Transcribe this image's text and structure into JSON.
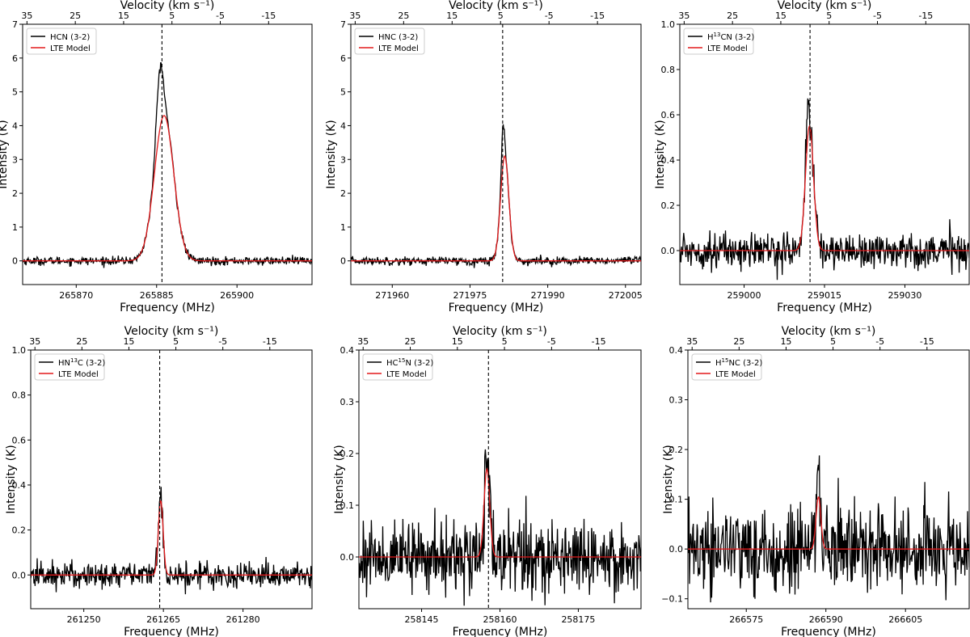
{
  "figure": {
    "chart_colors": {
      "observed": "#000000",
      "model": "#e31a1c",
      "marker": "#000000"
    }
  },
  "chart_data": [
    {
      "type": "line",
      "title": "",
      "xlabel": "Frequency (MHz)",
      "ylabel": "Intensity (K)",
      "top_xlabel": "Velocity (km s⁻¹)",
      "xlim": [
        265860,
        265914
      ],
      "ylim": [
        -0.7,
        7.0
      ],
      "x_ticks": [
        265870,
        265885,
        265900
      ],
      "y_ticks": [
        0,
        1,
        2,
        3,
        4,
        5,
        6,
        7
      ],
      "y_tick_labels": [
        "0",
        "1",
        "2",
        "3",
        "4",
        "5",
        "6",
        "7"
      ],
      "top_ticks": [
        35,
        25,
        15,
        5,
        -5,
        -15
      ],
      "legend": {
        "observed": "HCN (3-2)",
        "model": "LTE Model",
        "position": "top-left"
      },
      "line": {
        "center": 265886.4,
        "sigma": 1.8,
        "model_peak": 4.3,
        "obs_peak": 6.1,
        "noise": 0.06,
        "vline": 265886.0
      }
    },
    {
      "type": "line",
      "title": "",
      "xlabel": "Frequency (MHz)",
      "ylabel": "Intensity (K)",
      "top_xlabel": "Velocity (km s⁻¹)",
      "xlim": [
        271952,
        272008
      ],
      "ylim": [
        -0.7,
        7.0
      ],
      "x_ticks": [
        271960,
        271975,
        271990,
        272005
      ],
      "y_ticks": [
        0,
        1,
        2,
        3,
        4,
        5,
        6,
        7
      ],
      "y_tick_labels": [
        "0",
        "1",
        "2",
        "3",
        "4",
        "5",
        "6",
        "7"
      ],
      "top_ticks": [
        35,
        25,
        15,
        5,
        -5,
        -15
      ],
      "legend": {
        "observed": "HNC (3-2)",
        "model": "LTE Model",
        "position": "top-left"
      },
      "line": {
        "center": 271981.7,
        "sigma": 0.8,
        "model_peak": 3.1,
        "obs_peak": 4.3,
        "noise": 0.06,
        "vline": 271981.3
      }
    },
    {
      "type": "line",
      "title": "",
      "xlabel": "Frequency (MHz)",
      "ylabel": "Intensity (K)",
      "top_xlabel": "Velocity (km s⁻¹)",
      "xlim": [
        258988,
        259042
      ],
      "ylim": [
        -0.15,
        1.0
      ],
      "x_ticks": [
        259000,
        259015,
        259030
      ],
      "y_ticks": [
        0.0,
        0.2,
        0.4,
        0.6,
        0.8,
        1.0
      ],
      "y_tick_labels": [
        "0.0",
        "0.2",
        "0.4",
        "0.6",
        "0.8",
        "1.0"
      ],
      "top_ticks": [
        35,
        25,
        15,
        5,
        -5,
        -15
      ],
      "legend": {
        "observed_pre": "H",
        "observed_sup": "13",
        "observed_post": "CN (3-2)",
        "model": "LTE Model",
        "position": "top-left"
      },
      "line": {
        "center": 259012.2,
        "sigma": 0.75,
        "model_peak": 0.55,
        "obs_peak": 0.7,
        "noise": 0.04,
        "vline": 259012.3
      }
    },
    {
      "type": "line",
      "title": "",
      "xlabel": "Frequency (MHz)",
      "ylabel": "Intensity (K)",
      "top_xlabel": "Velocity (km s⁻¹)",
      "xlim": [
        261240,
        261293
      ],
      "ylim": [
        -0.15,
        1.0
      ],
      "x_ticks": [
        261250,
        261265,
        261280
      ],
      "y_ticks": [
        0.0,
        0.2,
        0.4,
        0.6,
        0.8,
        1.0
      ],
      "y_tick_labels": [
        "0.0",
        "0.2",
        "0.4",
        "0.6",
        "0.8",
        "1.0"
      ],
      "top_ticks": [
        35,
        25,
        15,
        5,
        -5,
        -15
      ],
      "legend": {
        "observed_pre": "HN",
        "observed_sup": "13",
        "observed_post": "C (3-2)",
        "model": "LTE Model",
        "position": "top-left"
      },
      "line": {
        "center": 261264.5,
        "sigma": 0.45,
        "model_peak": 0.33,
        "obs_peak": 0.36,
        "noise": 0.03,
        "vline": 261264.3
      }
    },
    {
      "type": "line",
      "title": "",
      "xlabel": "Frequency (MHz)",
      "ylabel": "Intensity (K)",
      "top_xlabel": "Velocity (km s⁻¹)",
      "xlim": [
        258133,
        258187
      ],
      "ylim": [
        -0.1,
        0.4
      ],
      "x_ticks": [
        258145,
        258160,
        258175
      ],
      "y_ticks": [
        0.0,
        0.1,
        0.2,
        0.3,
        0.4
      ],
      "y_tick_labels": [
        "0.0",
        "0.1",
        "0.2",
        "0.3",
        "0.4"
      ],
      "top_ticks": [
        35,
        25,
        15,
        5,
        -5,
        -15
      ],
      "legend": {
        "observed_pre": "HC",
        "observed_sup": "15",
        "observed_post": "N (3-2)",
        "model": "LTE Model",
        "position": "top-left"
      },
      "line": {
        "center": 258157.5,
        "sigma": 0.55,
        "model_peak": 0.17,
        "obs_peak": 0.18,
        "noise": 0.035,
        "vline": 258157.8
      }
    },
    {
      "type": "line",
      "title": "",
      "xlabel": "Frequency (MHz)",
      "ylabel": "Intensity (K)",
      "top_xlabel": "Velocity (km s⁻¹)",
      "xlim": [
        266564,
        266617
      ],
      "ylim": [
        -0.12,
        0.4
      ],
      "x_ticks": [
        266575,
        266590,
        266605
      ],
      "y_ticks": [
        -0.1,
        0.0,
        0.1,
        0.2,
        0.3,
        0.4
      ],
      "y_tick_labels": [
        "−0.1",
        "0.0",
        "0.1",
        "0.2",
        "0.3",
        "0.4"
      ],
      "top_ticks": [
        35,
        25,
        15,
        5,
        -5,
        -15
      ],
      "legend": {
        "observed_pre": "H",
        "observed_sup": "15",
        "observed_post": "NC (3-2)",
        "model": "LTE Model",
        "position": "top-left"
      },
      "line": {
        "center": 266588.6,
        "sigma": 0.45,
        "model_peak": 0.105,
        "obs_peak": 0.16,
        "noise": 0.045,
        "vline": null
      }
    }
  ]
}
